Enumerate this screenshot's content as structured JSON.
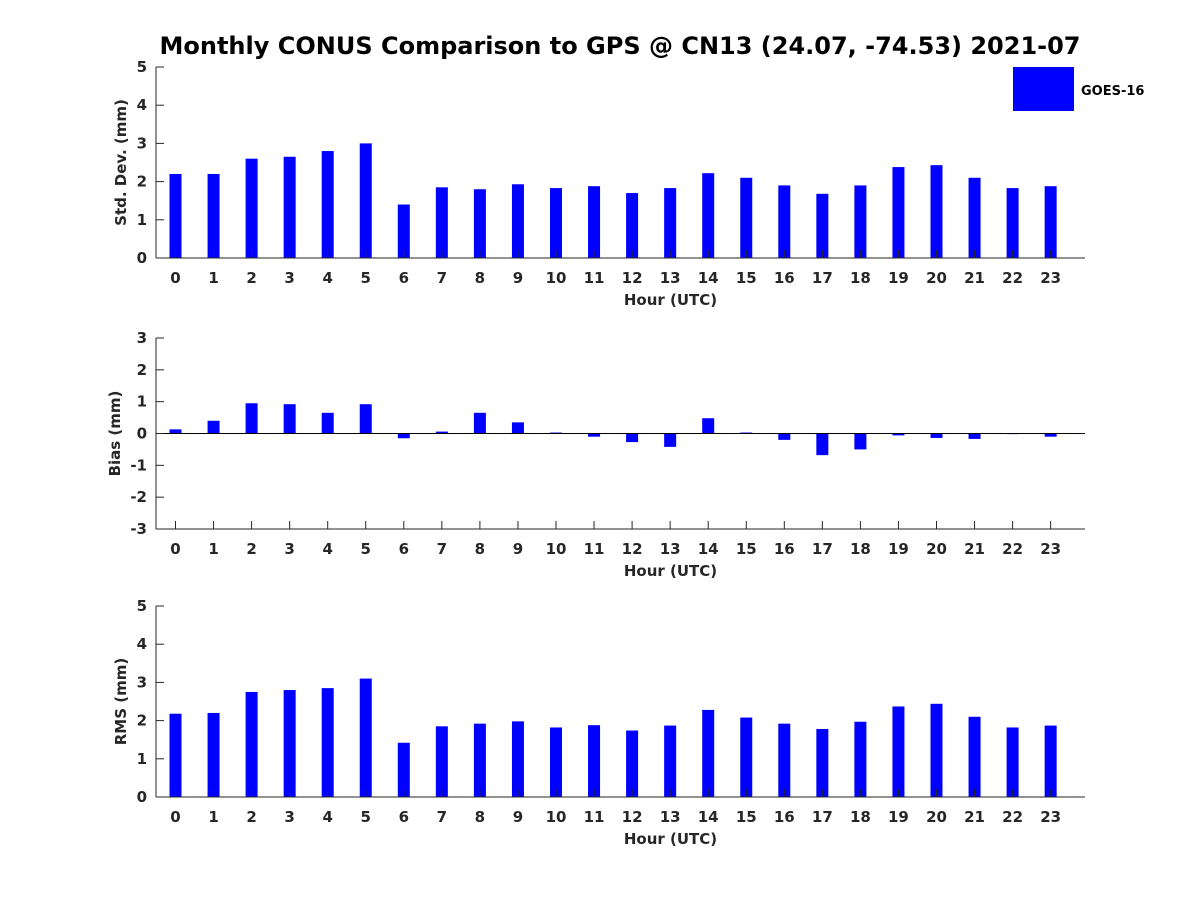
{
  "title": "Monthly CONUS Comparison to GPS @ CN13 (24.07, -74.53) 2021-07",
  "legend": {
    "label": "GOES-16",
    "color": "#0000ff",
    "placement": "top-right"
  },
  "chart_data": [
    {
      "type": "bar",
      "xlabel": "Hour (UTC)",
      "ylabel": "Std. Dev. (mm)",
      "ylim": [
        0,
        5
      ],
      "yticks": [
        0,
        1,
        2,
        3,
        4,
        5
      ],
      "categories": [
        "0",
        "1",
        "2",
        "3",
        "4",
        "5",
        "6",
        "7",
        "8",
        "9",
        "10",
        "11",
        "12",
        "13",
        "14",
        "15",
        "16",
        "17",
        "18",
        "19",
        "20",
        "21",
        "22",
        "23"
      ],
      "series": [
        {
          "name": "GOES-16",
          "color": "#0000ff",
          "values": [
            2.2,
            2.2,
            2.6,
            2.65,
            2.8,
            3.0,
            1.4,
            1.85,
            1.8,
            1.93,
            1.83,
            1.88,
            1.7,
            1.83,
            2.22,
            2.1,
            1.9,
            1.68,
            1.9,
            2.38,
            2.43,
            2.1,
            1.83,
            1.88
          ]
        }
      ]
    },
    {
      "type": "bar",
      "xlabel": "Hour (UTC)",
      "ylabel": "Bias (mm)",
      "ylim": [
        -3,
        3
      ],
      "yticks": [
        -3,
        -2,
        -1,
        0,
        1,
        2,
        3
      ],
      "categories": [
        "0",
        "1",
        "2",
        "3",
        "4",
        "5",
        "6",
        "7",
        "8",
        "9",
        "10",
        "11",
        "12",
        "13",
        "14",
        "15",
        "16",
        "17",
        "18",
        "19",
        "20",
        "21",
        "22",
        "23"
      ],
      "series": [
        {
          "name": "GOES-16",
          "color": "#0000ff",
          "values": [
            0.13,
            0.4,
            0.95,
            0.92,
            0.65,
            0.92,
            -0.15,
            0.06,
            0.65,
            0.35,
            0.03,
            -0.1,
            -0.27,
            -0.42,
            0.48,
            0.03,
            -0.2,
            -0.68,
            -0.5,
            -0.06,
            -0.14,
            -0.17,
            -0.02,
            -0.1
          ]
        }
      ]
    },
    {
      "type": "bar",
      "xlabel": "Hour (UTC)",
      "ylabel": "RMS (mm)",
      "ylim": [
        0,
        5
      ],
      "yticks": [
        0,
        1,
        2,
        3,
        4,
        5
      ],
      "categories": [
        "0",
        "1",
        "2",
        "3",
        "4",
        "5",
        "6",
        "7",
        "8",
        "9",
        "10",
        "11",
        "12",
        "13",
        "14",
        "15",
        "16",
        "17",
        "18",
        "19",
        "20",
        "21",
        "22",
        "23"
      ],
      "series": [
        {
          "name": "GOES-16",
          "color": "#0000ff",
          "values": [
            2.18,
            2.2,
            2.75,
            2.8,
            2.85,
            3.1,
            1.42,
            1.85,
            1.92,
            1.98,
            1.82,
            1.88,
            1.74,
            1.87,
            2.28,
            2.08,
            1.92,
            1.78,
            1.97,
            2.37,
            2.44,
            2.1,
            1.82,
            1.87
          ]
        }
      ]
    }
  ]
}
